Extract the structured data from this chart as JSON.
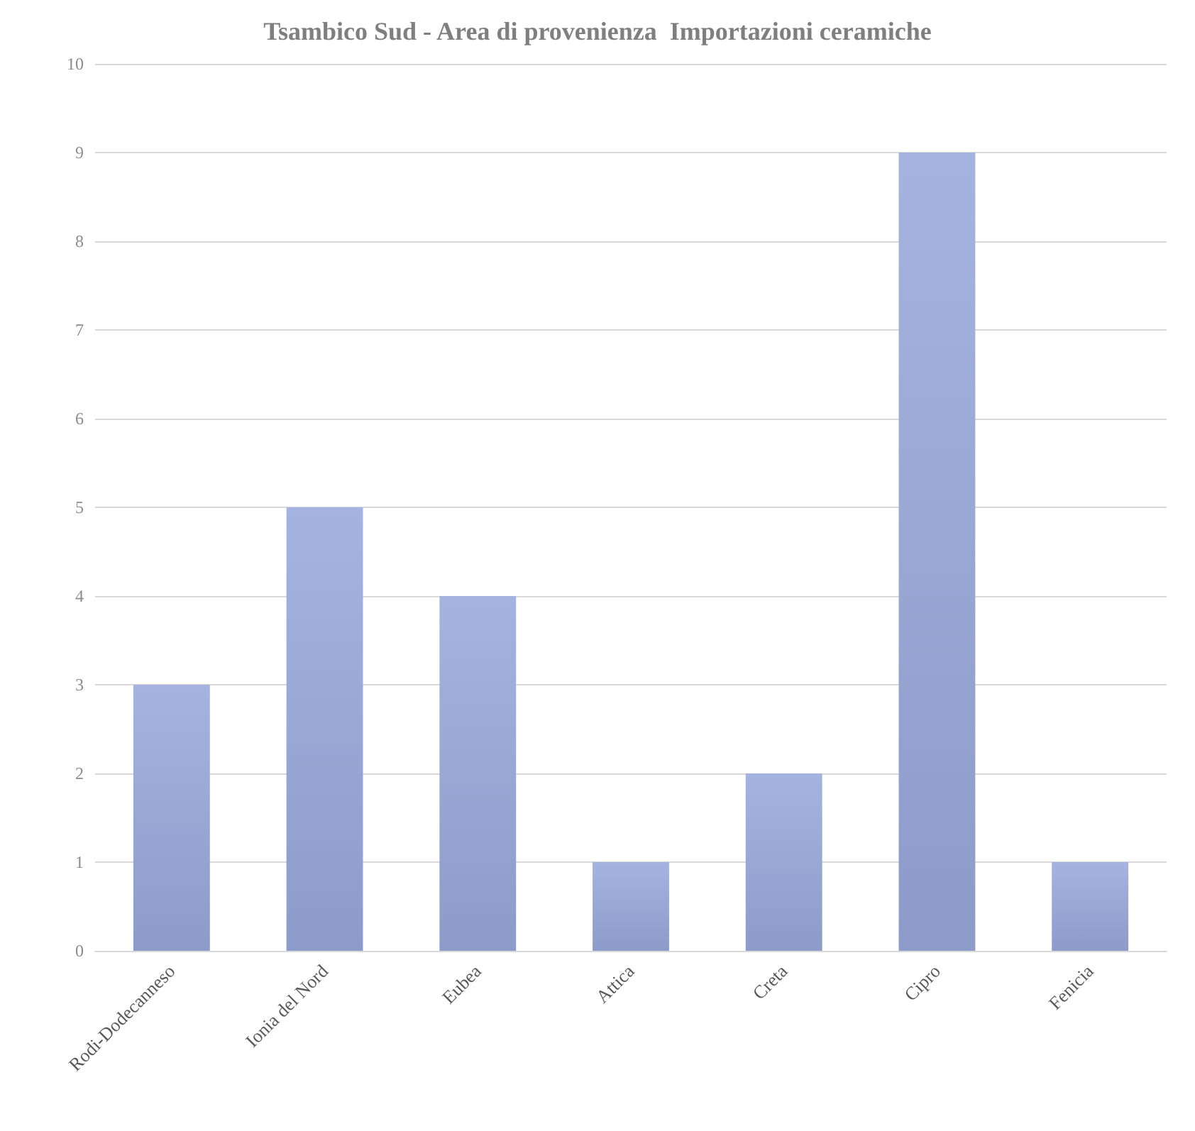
{
  "chart_data": {
    "type": "bar",
    "title": "Tsambico Sud - Area di provenienza  Importazioni ceramiche",
    "categories": [
      "Rodi-Dodecanneso",
      "Ionia del Nord",
      "Eubea",
      "Attica",
      "Creta",
      "Cipro",
      "Fenicia"
    ],
    "values": [
      3,
      5,
      4,
      1,
      2,
      9,
      1
    ],
    "color": "#99a9dc",
    "ylim": [
      0,
      10
    ],
    "yticks": [
      0,
      1,
      2,
      3,
      4,
      5,
      6,
      7,
      8,
      9,
      10
    ],
    "grid": "y"
  }
}
